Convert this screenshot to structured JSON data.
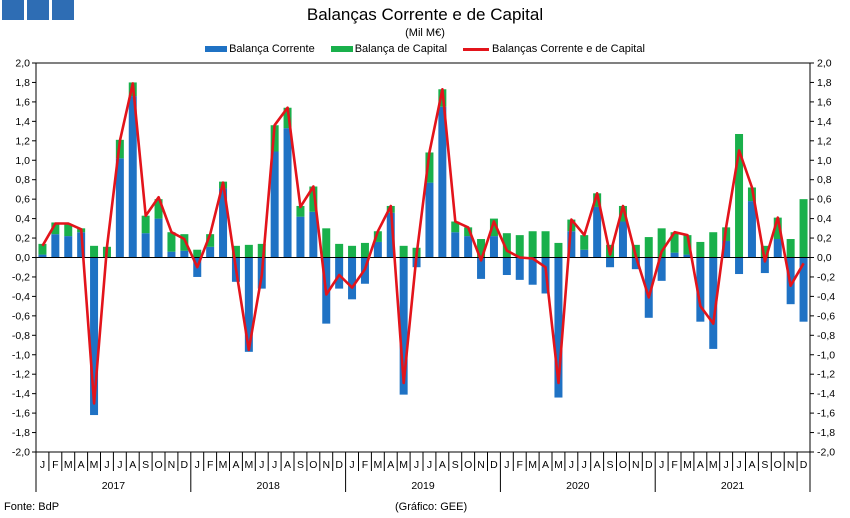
{
  "header": {
    "title": "Balanças Corrente e de Capital",
    "subtitle": "(Mil M€)"
  },
  "footer": {
    "source": "Fonte: BdP",
    "credit": "(Gráfico: GEE)"
  },
  "colors": {
    "current": "#1f72c4",
    "capital": "#19b04b",
    "line": "#e3141b",
    "logo": "#2e6db4"
  },
  "chart_data": {
    "type": "bar",
    "series": [
      {
        "name": "Balança Corrente",
        "kind": "bar",
        "values": [
          0.03,
          0.24,
          0.22,
          0.26,
          -1.62,
          0.0,
          1.02,
          1.66,
          0.25,
          0.4,
          0.06,
          0.07,
          -0.2,
          0.11,
          0.71,
          -0.25,
          -0.97,
          -0.32,
          1.09,
          1.33,
          0.42,
          0.47,
          -0.68,
          -0.32,
          -0.43,
          -0.27,
          0.16,
          0.46,
          -1.41,
          -0.1,
          0.77,
          1.55,
          0.26,
          0.22,
          -0.22,
          0.22,
          -0.18,
          -0.23,
          -0.28,
          -0.37,
          -1.44,
          0.27,
          0.08,
          0.52,
          -0.1,
          0.37,
          -0.12,
          -0.62,
          -0.24,
          0.05,
          0.03,
          -0.66,
          -0.94,
          0.17,
          -0.17,
          0.58,
          -0.16,
          0.19,
          -0.48,
          -0.66
        ]
      },
      {
        "name": "Balança de Capital",
        "kind": "bar",
        "values": [
          0.11,
          0.12,
          0.12,
          0.04,
          0.12,
          0.11,
          0.19,
          0.14,
          0.18,
          0.2,
          0.2,
          0.17,
          0.08,
          0.13,
          0.07,
          0.12,
          0.13,
          0.14,
          0.27,
          0.21,
          0.11,
          0.26,
          0.3,
          0.14,
          0.12,
          0.15,
          0.11,
          0.07,
          0.12,
          0.1,
          0.31,
          0.18,
          0.11,
          0.09,
          0.19,
          0.18,
          0.25,
          0.23,
          0.27,
          0.27,
          0.15,
          0.12,
          0.15,
          0.14,
          0.13,
          0.16,
          0.13,
          0.21,
          0.3,
          0.21,
          0.2,
          0.16,
          0.26,
          0.14,
          1.27,
          0.14,
          0.12,
          0.22,
          0.19,
          0.6
        ]
      },
      {
        "name": "Balanças Corrente e de Capital",
        "kind": "line",
        "values": [
          0.12,
          0.35,
          0.35,
          0.29,
          -1.5,
          0.11,
          1.2,
          1.79,
          0.43,
          0.62,
          0.26,
          0.19,
          -0.1,
          0.24,
          0.77,
          -0.12,
          -0.95,
          -0.18,
          1.36,
          1.54,
          0.52,
          0.73,
          -0.38,
          -0.18,
          -0.31,
          -0.12,
          0.27,
          0.53,
          -1.29,
          0.03,
          1.08,
          1.73,
          0.37,
          0.31,
          -0.03,
          0.37,
          0.07,
          0.0,
          -0.01,
          -0.1,
          -1.29,
          0.39,
          0.23,
          0.66,
          0.03,
          0.53,
          0.01,
          -0.41,
          0.06,
          0.26,
          0.23,
          -0.5,
          -0.68,
          0.31,
          1.1,
          0.72,
          -0.04,
          0.41,
          -0.29,
          -0.06
        ]
      }
    ],
    "month_labels": [
      "J",
      "F",
      "M",
      "A",
      "M",
      "J",
      "J",
      "A",
      "S",
      "O",
      "N",
      "D",
      "J",
      "F",
      "M",
      "A",
      "M",
      "J",
      "J",
      "A",
      "S",
      "O",
      "N",
      "D",
      "J",
      "F",
      "M",
      "A",
      "M",
      "J",
      "J",
      "A",
      "S",
      "O",
      "N",
      "D",
      "J",
      "F",
      "M",
      "A",
      "M",
      "J",
      "J",
      "A",
      "S",
      "O",
      "N",
      "D",
      "J",
      "F",
      "M",
      "A",
      "M",
      "J",
      "J",
      "A",
      "S",
      "O",
      "N",
      "D"
    ],
    "years": [
      "2017",
      "2018",
      "2019",
      "2020",
      "2021"
    ],
    "y_ticks": [
      "2,0",
      "1,8",
      "1,6",
      "1,4",
      "1,2",
      "1,0",
      "0,8",
      "0,6",
      "0,4",
      "0,2",
      "0,0",
      "-0,2",
      "-0,4",
      "-0,6",
      "-0,8",
      "-1,0",
      "-1,2",
      "-1,4",
      "-1,6",
      "-1,8",
      "-2,0"
    ],
    "ylim": [
      -2.0,
      2.0
    ],
    "legend_position": "top-center",
    "grid": false
  }
}
